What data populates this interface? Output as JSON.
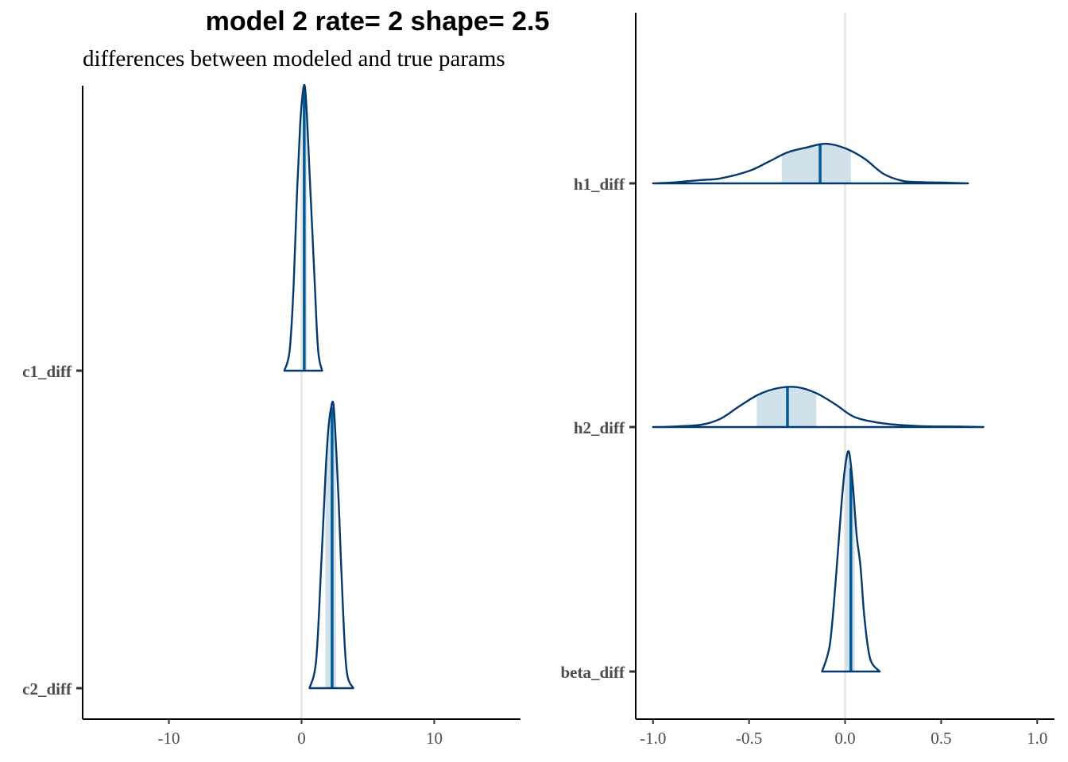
{
  "title": "model 2 rate= 2 shape= 2.5",
  "subtitle": "differences between modeled and true params",
  "colors": {
    "outline": "#03396c",
    "fill": "#d1e1ec",
    "median": "#005b96",
    "refline": "#e5e5e5",
    "axis": "#000000"
  },
  "chart_data": [
    {
      "type": "area",
      "subtype": "ridgeline",
      "xlim": [
        -16.5,
        16.5
      ],
      "ticks": [
        -10,
        0,
        10
      ],
      "tick_labels": [
        "-10",
        "0",
        "10"
      ],
      "reference_line": 0,
      "categories": [
        "c1_diff",
        "c2_diff"
      ],
      "series": [
        {
          "name": "c1_diff",
          "x": [
            -1.3,
            -0.9,
            -0.6,
            -0.35,
            -0.1,
            0.1,
            0.25,
            0.4,
            0.6,
            0.8,
            1.0,
            1.25,
            1.55
          ],
          "density": [
            0.0,
            0.07,
            0.3,
            0.62,
            0.87,
            0.98,
            1.0,
            0.9,
            0.7,
            0.5,
            0.3,
            0.07,
            0.0
          ],
          "median": 0.2,
          "interval": [
            0.1,
            0.4
          ]
        },
        {
          "name": "c2_diff",
          "x": [
            0.6,
            1.1,
            1.5,
            1.8,
            2.0,
            2.2,
            2.4,
            2.6,
            2.8,
            3.1,
            3.4,
            3.9
          ],
          "density": [
            0.0,
            0.1,
            0.45,
            0.75,
            0.9,
            0.98,
            1.0,
            0.85,
            0.65,
            0.3,
            0.06,
            0.0
          ],
          "median": 2.3,
          "interval": [
            1.8,
            2.6
          ]
        }
      ]
    },
    {
      "type": "area",
      "subtype": "ridgeline",
      "xlim": [
        -1.09,
        1.09
      ],
      "ticks": [
        -1.0,
        -0.5,
        0.0,
        0.5,
        1.0
      ],
      "tick_labels": [
        "-1.0",
        "-0.5",
        "0.0",
        "0.5",
        "1.0"
      ],
      "reference_line": 0,
      "categories": [
        "h1_diff",
        "h2_diff",
        "beta_diff"
      ],
      "series": [
        {
          "name": "h1_diff",
          "x": [
            -1.0,
            -0.9,
            -0.75,
            -0.65,
            -0.5,
            -0.4,
            -0.3,
            -0.2,
            -0.1,
            0.0,
            0.1,
            0.2,
            0.3,
            0.4,
            0.5,
            0.64
          ],
          "density": [
            0.0,
            0.02,
            0.08,
            0.12,
            0.3,
            0.52,
            0.75,
            0.87,
            0.96,
            0.85,
            0.6,
            0.23,
            0.06,
            0.03,
            0.02,
            0.0
          ],
          "median": -0.13,
          "interval": [
            -0.33,
            0.03
          ]
        },
        {
          "name": "h2_diff",
          "x": [
            -1.0,
            -0.9,
            -0.75,
            -0.65,
            -0.55,
            -0.45,
            -0.35,
            -0.25,
            -0.15,
            -0.05,
            0.05,
            0.2,
            0.4,
            0.6,
            0.72
          ],
          "density": [
            0.0,
            0.01,
            0.05,
            0.18,
            0.46,
            0.72,
            0.86,
            0.88,
            0.75,
            0.5,
            0.22,
            0.08,
            0.02,
            0.01,
            0.0
          ],
          "median": -0.3,
          "interval": [
            -0.46,
            -0.15
          ]
        },
        {
          "name": "beta_diff",
          "x": [
            -0.12,
            -0.08,
            -0.05,
            -0.02,
            0.0,
            0.02,
            0.04,
            0.06,
            0.08,
            0.1,
            0.13,
            0.18
          ],
          "density": [
            0.0,
            0.12,
            0.4,
            0.75,
            0.93,
            1.0,
            0.85,
            0.62,
            0.48,
            0.25,
            0.06,
            0.0
          ],
          "median": 0.03,
          "interval": [
            0.0,
            0.05
          ]
        }
      ]
    }
  ]
}
